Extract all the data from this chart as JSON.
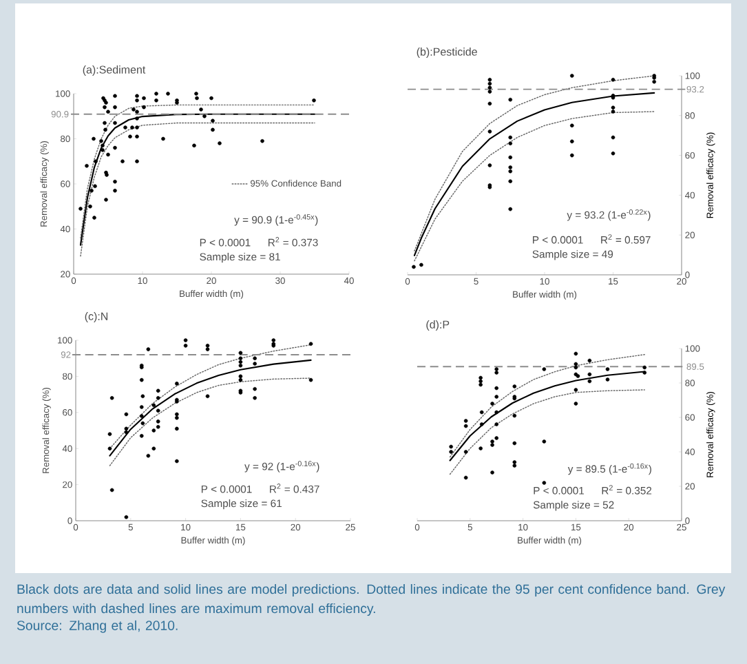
{
  "chart_data": [
    {
      "type": "scatter",
      "title": "(a):Sediment",
      "xlabel": "Buffer width (m)",
      "ylabel": "Removal efficacy (%)",
      "xlim": [
        0,
        40
      ],
      "xticks": [
        0,
        10,
        20,
        30,
        40
      ],
      "ylim": [
        20,
        100
      ],
      "yticks": [
        20,
        40,
        60,
        80,
        100
      ],
      "legend": "right",
      "series": [
        {
          "marker": "circle",
          "color": "#000000",
          "x": [
            1.0,
            1.9,
            2.4,
            2.6,
            2.9,
            3.0,
            3.1,
            3.2,
            4.0,
            4.2,
            4.2,
            4.3,
            4.5,
            4.5,
            4.7,
            4.5,
            4.6,
            4.7,
            4.8,
            4.7,
            5.0,
            5.0,
            6.0,
            6.0,
            6.0,
            6.0,
            6.0,
            6.0,
            7.1,
            7.5,
            8.2,
            8.5,
            8.7,
            9.2,
            9.2,
            9.2,
            9.2,
            9.2,
            9.2,
            9.2,
            10.2,
            10.2,
            12.0,
            12.0,
            13.7,
            13.0,
            15.0,
            15.0,
            17.5,
            17.8,
            17.9,
            18.5,
            19.0,
            20.0,
            20.2,
            20.2,
            21.2,
            27.4,
            34.9
          ],
          "values": [
            49,
            68,
            50,
            57,
            80,
            45,
            59,
            70,
            79,
            77,
            75,
            98,
            97,
            94,
            96,
            87,
            84,
            65,
            64,
            53,
            92,
            73,
            99,
            94,
            87,
            76,
            61,
            57,
            70,
            85,
            81,
            85,
            93,
            99,
            97,
            92,
            89,
            85,
            81,
            70,
            98,
            94,
            100,
            97,
            100,
            80,
            97,
            96,
            77,
            100,
            98,
            93,
            90,
            98,
            88,
            84,
            78,
            79,
            97
          ]
        },
        {
          "type": "line",
          "marker": "none",
          "color": "#000000",
          "x": [
            1,
            2,
            3,
            4,
            5,
            6,
            8,
            10,
            15,
            20,
            35
          ],
          "values": [
            32.9,
            53.9,
            67.3,
            75.9,
            81.3,
            84.8,
            88.4,
            89.9,
            90.8,
            90.9,
            90.9
          ]
        },
        {
          "type": "line",
          "marker": "none",
          "line_style": "dotted",
          "name": "95% Confidence Band",
          "color": "#666666",
          "x": [
            1,
            2,
            3,
            4,
            5,
            6,
            8,
            10,
            15,
            35
          ],
          "values": [
            36,
            58,
            71,
            80,
            86,
            90,
            93.5,
            94.5,
            95,
            95
          ]
        },
        {
          "type": "line",
          "marker": "none",
          "line_style": "dotted",
          "color": "#666666",
          "x": [
            1,
            2,
            3,
            4,
            5,
            6,
            8,
            10,
            15,
            35
          ],
          "values": [
            28,
            50,
            63,
            72,
            77,
            80.5,
            84,
            86,
            87,
            87
          ]
        }
      ],
      "ref_lines": [
        {
          "axis": "y",
          "value": 90.9,
          "label": "90.9",
          "color": "#8c8c8c",
          "line_style": "dashed"
        }
      ],
      "annotations": [
        "y = 90.9 (1-e$^{-0.45x}$)",
        "P < 0.0001",
        "R$^{2}$ = 0.373",
        "Sample size = 81"
      ]
    },
    {
      "type": "scatter",
      "title": "(b):Pesticide",
      "xlabel": "Buffer width (m)",
      "y2label": "Removal efficacy (%)",
      "xlim": [
        0,
        20
      ],
      "xticks": [
        0,
        5,
        10,
        15,
        20
      ],
      "y2lim": [
        0,
        100
      ],
      "y2ticks": [
        0,
        20,
        40,
        60,
        80,
        100
      ],
      "series": [
        {
          "axis": "y2",
          "marker": "circle",
          "color": "#000000",
          "x": [
            0.45,
            1.0,
            6,
            6,
            6,
            6,
            6,
            6,
            6,
            6,
            6,
            7.5,
            7.5,
            7.5,
            7.5,
            7.5,
            7.5,
            7.5,
            7.5,
            12,
            12,
            12,
            12,
            15,
            15,
            15,
            15,
            15,
            15,
            15,
            18,
            18,
            18
          ],
          "values": [
            4,
            5,
            98,
            96,
            94,
            92,
            86,
            72,
            55,
            45,
            44,
            88,
            69,
            66,
            59,
            54,
            52,
            47,
            33,
            100,
            75,
            67,
            60,
            98,
            90,
            89,
            84,
            82,
            69,
            61,
            100,
            99,
            97
          ]
        },
        {
          "axis": "y2",
          "type": "line",
          "marker": "none",
          "color": "#000000",
          "x": [
            0.5,
            1,
            2,
            4,
            6,
            8,
            10,
            12,
            15,
            18
          ],
          "values": [
            9.7,
            18.4,
            33.2,
            54.5,
            68.3,
            77.2,
            82.9,
            86.6,
            89.8,
            91.4
          ]
        },
        {
          "axis": "y2",
          "type": "line",
          "marker": "none",
          "line_style": "dotted",
          "color": "#666666",
          "x": [
            0.5,
            2,
            4,
            6,
            8,
            10,
            12,
            15,
            18
          ],
          "values": [
            12,
            38,
            62,
            76,
            85,
            90.5,
            94,
            97.5,
            100
          ]
        },
        {
          "axis": "y2",
          "type": "line",
          "marker": "none",
          "line_style": "dotted",
          "color": "#666666",
          "x": [
            0.5,
            2,
            4,
            6,
            8,
            10,
            12,
            15,
            18
          ],
          "values": [
            7,
            28,
            47,
            60,
            69,
            75,
            78.5,
            81.5,
            82
          ]
        }
      ],
      "ref_lines": [
        {
          "axis": "y2",
          "value": 93.2,
          "label": "93.2",
          "color": "#8c8c8c",
          "line_style": "dashed"
        }
      ],
      "annotations": [
        "y = 93.2 (1-e$^{-0.22x}$)",
        "P < 0.0001",
        "R$^{2}$ = 0.597",
        "Sample size = 49"
      ]
    },
    {
      "type": "scatter",
      "title": "(c):N",
      "xlabel": "Buffer width (m)",
      "ylabel": "Removal efficacy (%)",
      "xlim": [
        0,
        25
      ],
      "xticks": [
        0,
        5,
        10,
        15,
        20,
        25
      ],
      "ylim": [
        0,
        100
      ],
      "yticks": [
        0,
        20,
        40,
        60,
        80,
        100
      ],
      "series": [
        {
          "marker": "circle",
          "color": "#000000",
          "x": [
            3.1,
            3.1,
            3.3,
            3.3,
            4.6,
            4.6,
            4.6,
            4.6,
            6,
            6,
            6,
            6.1,
            6,
            6,
            6.1,
            6,
            6.6,
            6.6,
            7.1,
            7.1,
            7.1,
            7.5,
            7.5,
            7.5,
            7.5,
            7.5,
            9.2,
            9.2,
            9.2,
            9.2,
            9.2,
            9.2,
            9.2,
            10,
            10,
            12,
            12,
            12,
            15,
            15,
            15,
            15,
            15,
            15,
            15,
            15,
            16.3,
            16.3,
            16.3,
            16.3,
            18,
            18,
            18,
            21.4,
            21.4
          ],
          "values": [
            48,
            40,
            68,
            17,
            59,
            51,
            2,
            49,
            86,
            85,
            78,
            69,
            63,
            58,
            54,
            47,
            95,
            36,
            64,
            50,
            40,
            72,
            68,
            61,
            55,
            52,
            76,
            67,
            66,
            59,
            57,
            51,
            33,
            100,
            97,
            97,
            95,
            69,
            93,
            90,
            88,
            86,
            80,
            78,
            72,
            71,
            90,
            87,
            73,
            68,
            100,
            98,
            97,
            98,
            78
          ]
        },
        {
          "type": "line",
          "marker": "none",
          "color": "#000000",
          "x": [
            3.1,
            5,
            7,
            9,
            11,
            13,
            15,
            18,
            21.4
          ],
          "values": [
            36,
            50.7,
            62,
            70.2,
            76.2,
            80.5,
            83.7,
            86.8,
            89
          ]
        },
        {
          "type": "line",
          "marker": "none",
          "line_style": "dotted",
          "color": "#666666",
          "x": [
            3.1,
            5,
            7,
            9,
            11,
            13,
            15,
            18,
            21.4
          ],
          "values": [
            40,
            53,
            65,
            74,
            81,
            86.5,
            90,
            94,
            97.5
          ]
        },
        {
          "type": "line",
          "marker": "none",
          "line_style": "dotted",
          "color": "#666666",
          "x": [
            3.1,
            5,
            7,
            9,
            11,
            13,
            15,
            18,
            21.4
          ],
          "values": [
            30.5,
            46,
            57,
            65,
            71,
            75,
            77,
            78.5,
            79
          ]
        }
      ],
      "ref_lines": [
        {
          "axis": "y",
          "value": 92,
          "label": "92",
          "color": "#8c8c8c",
          "line_style": "dashed"
        }
      ],
      "annotations": [
        "y = 92 (1-e$^{-0.16x}$)",
        "P < 0.0001",
        "R$^{2}$ = 0.437",
        "Sample size = 61"
      ]
    },
    {
      "type": "scatter",
      "title": "(d):P",
      "xlabel": "Buffer width (m)",
      "y2label": "Removal efficacy (%)",
      "xlim": [
        0,
        25
      ],
      "xticks": [
        0,
        5,
        10,
        15,
        20,
        25
      ],
      "y2lim": [
        0,
        100
      ],
      "y2ticks": [
        0,
        20,
        40,
        60,
        80,
        100
      ],
      "series": [
        {
          "axis": "y2",
          "marker": "circle",
          "color": "#000000",
          "x": [
            3.2,
            3.2,
            4.6,
            4.6,
            4.6,
            4.6,
            6,
            6,
            6,
            6.1,
            6.1,
            6,
            7.1,
            7.1,
            7.1,
            7.1,
            7.5,
            7.5,
            7.5,
            7.5,
            7.5,
            7.5,
            7.5,
            9.2,
            9.2,
            9.2,
            9.2,
            9.2,
            9.2,
            9.2,
            12,
            12,
            12,
            15,
            15,
            15,
            15,
            15,
            15,
            15.2,
            16.3,
            16.3,
            16.3,
            18,
            18,
            21.5,
            21.5
          ],
          "values": [
            43,
            40,
            58,
            55,
            40,
            25,
            83,
            81,
            79,
            63,
            56,
            42,
            68,
            46,
            44,
            28,
            88,
            86,
            77,
            72,
            63,
            56,
            48,
            78,
            72,
            71,
            61,
            45,
            34,
            32,
            88,
            46,
            22,
            97,
            91,
            89,
            85,
            76,
            68,
            84,
            93,
            85,
            81,
            88,
            82,
            89,
            86
          ]
        },
        {
          "axis": "y2",
          "type": "line",
          "marker": "none",
          "color": "#000000",
          "x": [
            3.1,
            5,
            7,
            9,
            11,
            13,
            15,
            18,
            21.5
          ],
          "values": [
            35,
            49.3,
            60.3,
            68.3,
            74.1,
            78.3,
            81.4,
            84.5,
            86.6
          ]
        },
        {
          "axis": "y2",
          "type": "line",
          "marker": "none",
          "line_style": "dotted",
          "color": "#666666",
          "x": [
            3.1,
            5,
            7,
            9,
            11,
            13,
            15,
            18,
            21.5
          ],
          "values": [
            37,
            53,
            66,
            75,
            82,
            86.5,
            90,
            93.5,
            96.5
          ]
        },
        {
          "axis": "y2",
          "type": "line",
          "marker": "none",
          "line_style": "dotted",
          "color": "#666666",
          "x": [
            3.1,
            5,
            7,
            9,
            11,
            13,
            15,
            18,
            21.5
          ],
          "values": [
            27,
            42,
            54,
            62,
            68,
            72,
            74.5,
            75.5,
            76
          ]
        }
      ],
      "ref_lines": [
        {
          "axis": "y2",
          "value": 89.5,
          "label": "89.5",
          "color": "#8c8c8c",
          "line_style": "dashed"
        }
      ],
      "annotations": [
        "y = 89.5 (1-e$^{-0.16x}$)",
        "P < 0.0001",
        "R$^{2}$ = 0.352",
        "Sample size = 52"
      ]
    },
    {
      "type": "other",
      "annotations": [
        "Black dots are data and solid lines are model predictions. Dotted lines indicate the 95 per cent confidence band. Grey numbers with dashed lines are maximum removal efficiency.",
        "Source: Zhang et al, 2010."
      ]
    }
  ]
}
